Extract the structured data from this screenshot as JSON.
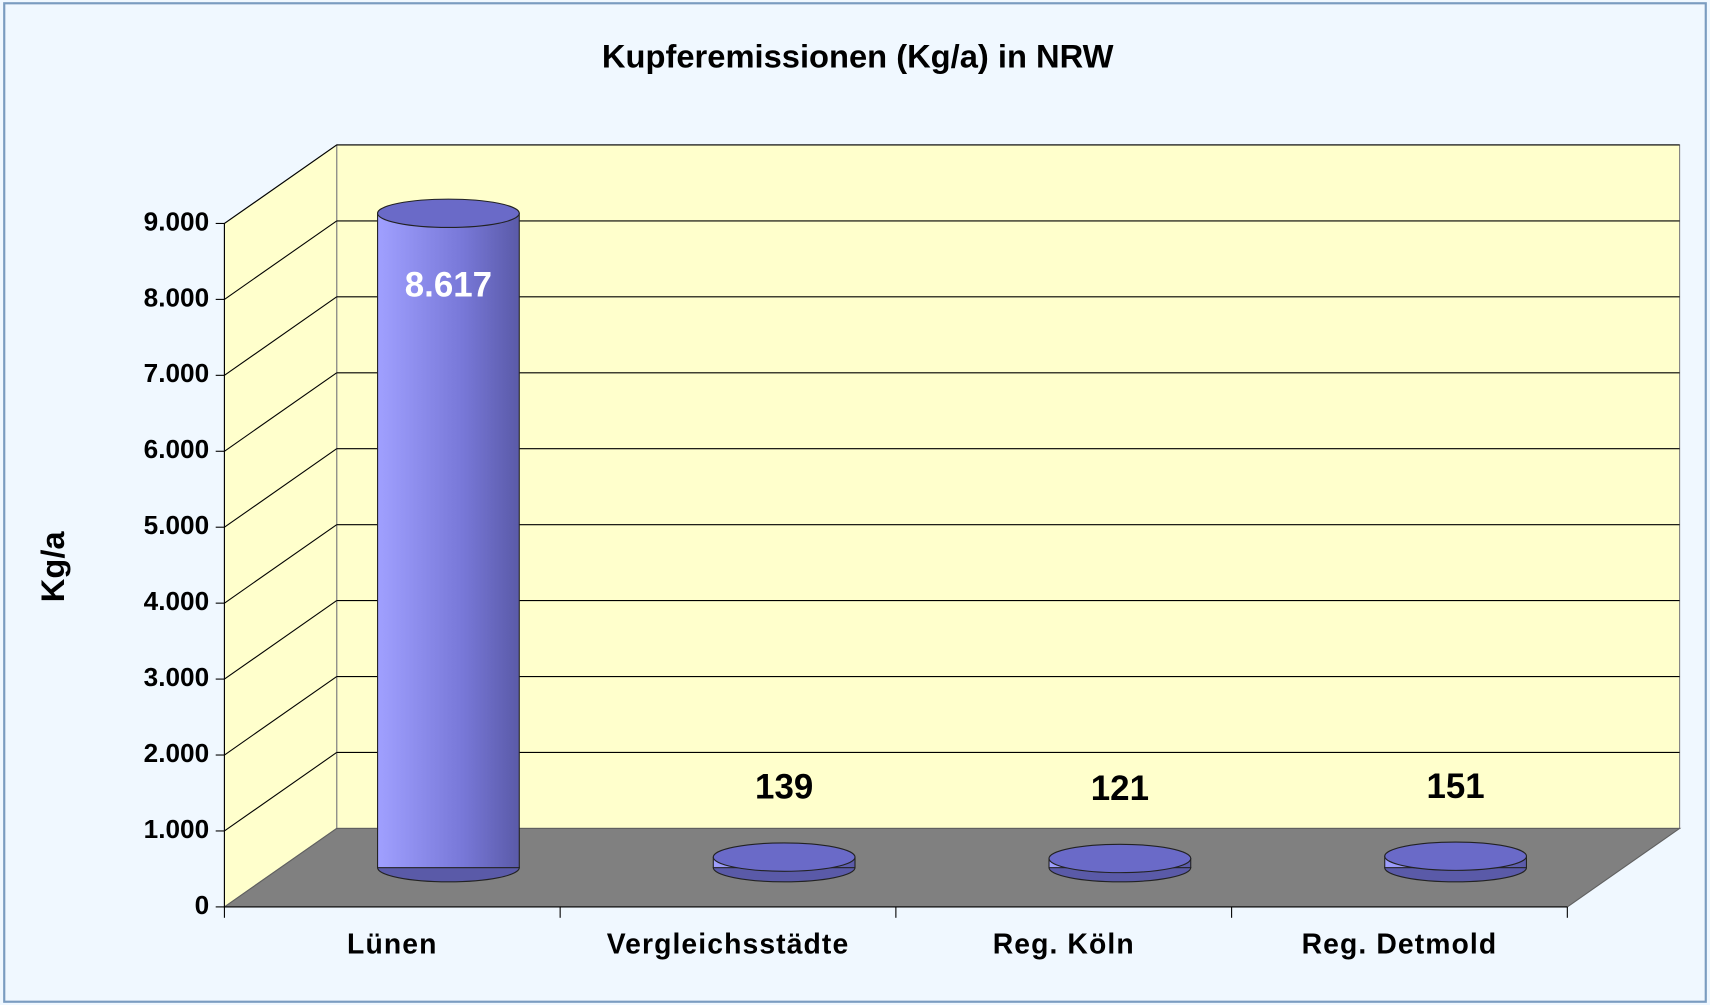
{
  "chart_data": {
    "type": "bar3d",
    "title": "Kupferemissionen (Kg/a) in NRW",
    "y_label": "Kg/a",
    "categories": [
      "Lünen",
      "Vergleichsstädte",
      "Reg. Köln",
      "Reg. Detmold"
    ],
    "values": [
      8617,
      139,
      121,
      151
    ],
    "value_labels": [
      "8.617",
      "139",
      "121",
      "151"
    ],
    "color": "#8888ee",
    "ylim": [
      0,
      9000
    ],
    "yticks": [
      0,
      {
        "value": 1000,
        "label": "1.000"
      },
      {
        "value": 2000,
        "label": "2.000"
      },
      {
        "value": 3000,
        "label": "3.000"
      },
      {
        "value": 4000,
        "label": "4.000"
      },
      {
        "value": 5000,
        "label": "5.000"
      },
      {
        "value": 6000,
        "label": "6.000"
      },
      {
        "value": 7000,
        "label": "7.000"
      },
      {
        "value": 8000,
        "label": "8.000"
      },
      {
        "value": 9000,
        "label": "9.000"
      }
    ],
    "grid": true
  }
}
